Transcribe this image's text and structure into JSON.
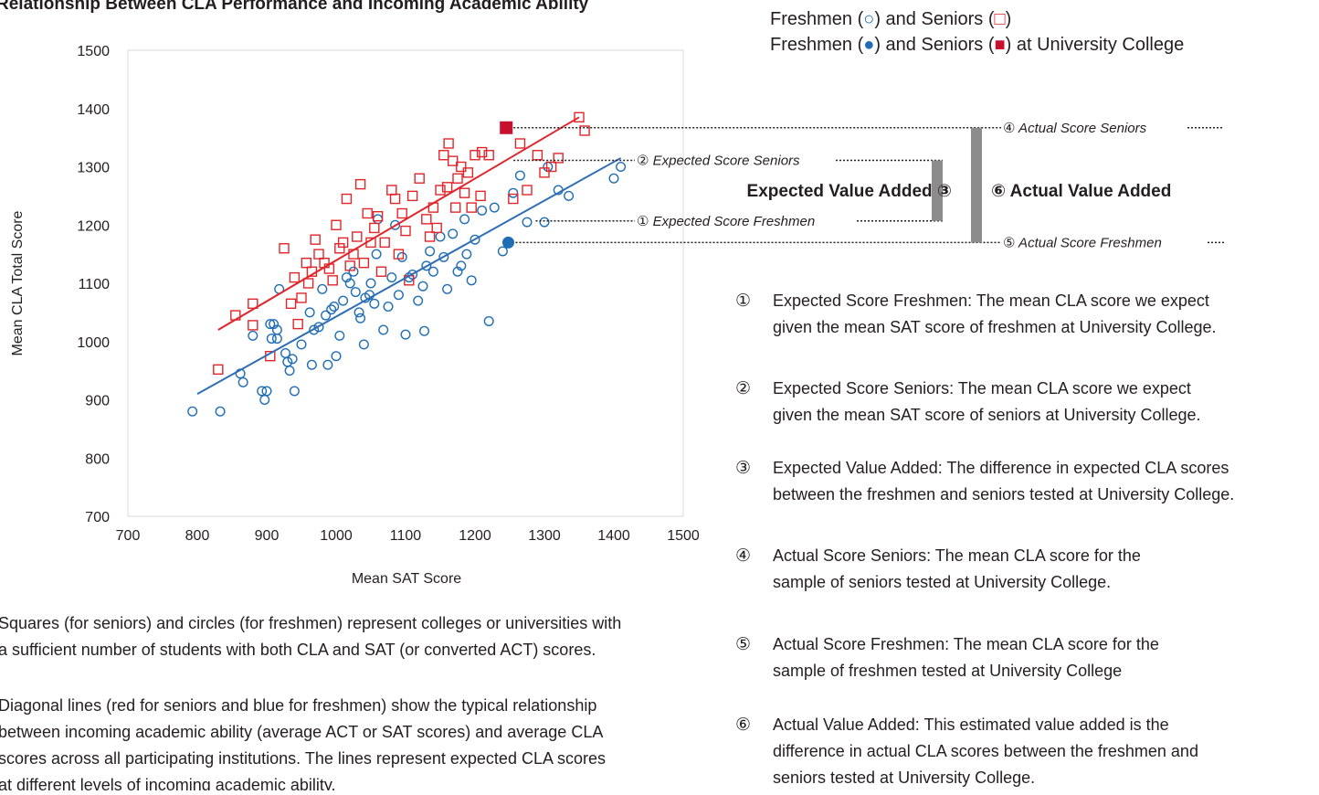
{
  "chart_data": {
    "type": "scatter",
    "title": "Relationship Between CLA Performance and Incoming Academic Ability",
    "x_label": "Mean SAT Score",
    "y_label": "Mean CLA Total Score",
    "xlim": [
      700,
      1500
    ],
    "xticks": [
      700,
      800,
      900,
      1000,
      1100,
      1200,
      1300,
      1400,
      1500
    ],
    "ylim": [
      700,
      1500
    ],
    "yticks": [
      700,
      800,
      900,
      1000,
      1100,
      1200,
      1300,
      1400,
      1500
    ],
    "series": [
      {
        "color": "#1f6db5",
        "marker": "circle",
        "x": [
          793,
          833,
          862,
          866,
          880,
          893,
          897,
          900,
          905,
          910,
          907,
          915,
          915,
          918,
          927,
          930,
          933,
          937,
          940,
          950,
          962,
          965,
          968,
          975,
          980,
          985,
          988,
          993,
          997,
          1000,
          1005,
          1010,
          1015,
          1020,
          1025,
          1028,
          1033,
          1035,
          1040,
          1042,
          1048,
          1050,
          1055,
          1058,
          1060,
          1068,
          1075,
          1080,
          1085,
          1090,
          1095,
          1100,
          1105,
          1110,
          1118,
          1125,
          1127,
          1130,
          1135,
          1140,
          1150,
          1155,
          1160,
          1168,
          1175,
          1180,
          1185,
          1188,
          1195,
          1200,
          1210,
          1220,
          1228,
          1240,
          1255,
          1265,
          1275,
          1300,
          1305,
          1320,
          1335,
          1400,
          1410
        ],
        "y": [
          880,
          880,
          945,
          930,
          1010,
          915,
          900,
          915,
          1030,
          1030,
          1005,
          1020,
          1005,
          1090,
          980,
          965,
          950,
          970,
          915,
          995,
          1050,
          960,
          1020,
          1025,
          1090,
          1045,
          960,
          1055,
          1060,
          975,
          1010,
          1070,
          1110,
          1100,
          1120,
          1085,
          1050,
          1040,
          995,
          1075,
          1080,
          1100,
          1065,
          1150,
          1210,
          1020,
          1060,
          1110,
          1200,
          1080,
          1145,
          1012,
          1110,
          1115,
          1070,
          1095,
          1018,
          1130,
          1155,
          1120,
          1180,
          1145,
          1090,
          1185,
          1120,
          1130,
          1210,
          1150,
          1105,
          1175,
          1225,
          1035,
          1230,
          1155,
          1255,
          1285,
          1205,
          1205,
          1300,
          1260,
          1250,
          1280,
          1300
        ]
      },
      {
        "color": "#e0262b",
        "marker": "square",
        "x": [
          830,
          855,
          880,
          880,
          925,
          935,
          940,
          945,
          950,
          957,
          960,
          965,
          970,
          975,
          983,
          990,
          995,
          1000,
          1005,
          1010,
          1015,
          1020,
          1025,
          1030,
          1035,
          1040,
          1045,
          1050,
          1055,
          1060,
          1065,
          1070,
          1080,
          1085,
          1090,
          1095,
          1100,
          1110,
          1120,
          1130,
          1135,
          1140,
          1145,
          1150,
          1155,
          1160,
          1162,
          1168,
          1172,
          1175,
          1180,
          1185,
          1190,
          1195,
          1200,
          1210,
          1220,
          1255,
          1265,
          1275,
          1290,
          1300,
          1310,
          1320,
          1350,
          1358,
          1105,
          905,
          1208
        ],
        "y": [
          952,
          1045,
          1065,
          1028,
          1160,
          1065,
          1110,
          1030,
          1075,
          1135,
          1100,
          1120,
          1175,
          1150,
          1135,
          1125,
          1105,
          1200,
          1160,
          1170,
          1245,
          1130,
          1150,
          1180,
          1270,
          1135,
          1220,
          1170,
          1195,
          1215,
          1120,
          1170,
          1260,
          1245,
          1150,
          1220,
          1190,
          1250,
          1280,
          1210,
          1180,
          1230,
          1195,
          1260,
          1320,
          1265,
          1340,
          1310,
          1230,
          1280,
          1300,
          1255,
          1290,
          1230,
          1320,
          1325,
          1320,
          1245,
          1340,
          1260,
          1320,
          1290,
          1300,
          1315,
          1385,
          1362,
          1105,
          975,
          1250
        ]
      },
      {
        "color": "#1f6db5",
        "marker": "circle-filled",
        "x": [
          1248
        ],
        "y": [
          1170
        ]
      },
      {
        "color": "#c8102e",
        "marker": "square-filled",
        "x": [
          1245
        ],
        "y": [
          1367
        ]
      }
    ],
    "trend_lines": [
      {
        "color": "#2e6eb5",
        "x": [
          800,
          1410
        ],
        "y": [
          910,
          1315
        ]
      },
      {
        "color": "#e0262b",
        "x": [
          830,
          1350
        ],
        "y": [
          1020,
          1385
        ]
      }
    ],
    "legend": [
      [
        "Freshmen (",
        "○",
        ") and Seniors (",
        "□",
        ")"
      ],
      [
        "Freshmen (",
        "●",
        ") and Seniors (",
        "■",
        ") at University College"
      ]
    ],
    "annotations": {
      "expected_score_freshmen": {
        "label": "① Expected Score Freshmen",
        "x": 1248,
        "value": 1207
      },
      "expected_score_seniors": {
        "label": "② Expected Score Seniors",
        "x": 1245,
        "value": 1311
      },
      "actual_score_seniors": "④ Actual Score Seniors",
      "actual_score_freshmen": "⑤ Actual Score Freshmen",
      "expected_value_added": "Expected Value Added ③",
      "actual_value_added": "⑥ Actual Value Added"
    },
    "notes": [
      {
        "number": "①",
        "lines": [
          "Expected Score Freshmen: The mean CLA score we expect",
          "given the mean SAT score of freshmen at University College."
        ]
      },
      {
        "number": "②",
        "lines": [
          "Expected Score Seniors: The mean CLA score we expect",
          "given the mean SAT score of seniors at University College."
        ]
      },
      {
        "number": "③",
        "lines": [
          "Expected Value Added: The difference in expected CLA scores",
          "between the freshmen and seniors tested at University College."
        ]
      },
      {
        "number": "④",
        "lines": [
          "Actual Score Seniors: The mean CLA score for the",
          "sample of seniors tested at University College."
        ]
      },
      {
        "number": "⑤",
        "lines": [
          "Actual Score Freshmen: The mean CLA score for the",
          "sample of freshmen tested at University College"
        ]
      },
      {
        "number": "⑥",
        "lines": [
          "Actual Value Added: This estimated value added is the",
          "difference in actual CLA scores between the freshmen and",
          "seniors tested at University College."
        ]
      }
    ],
    "footnotes": [
      [
        "Squares (for seniors) and circles (for freshmen) represent colleges or universities with",
        "a sufficient number of students with both CLA and SAT (or converted ACT) scores."
      ],
      [
        "Diagonal lines (red for seniors and blue for freshmen) show the typical relationship",
        "between incoming academic ability (average ACT or SAT scores) and average CLA",
        "scores across all participating institutions. The lines represent expected CLA scores",
        "at different levels of incoming academic ability."
      ]
    ]
  }
}
